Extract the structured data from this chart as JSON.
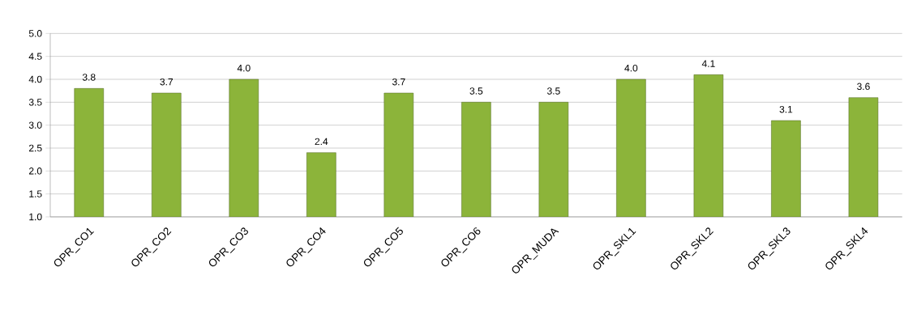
{
  "chart_data": {
    "type": "bar",
    "categories": [
      "OPR_CO1",
      "OPR_CO2",
      "OPR_CO3",
      "OPR_CO4",
      "OPR_CO5",
      "OPR_CO6",
      "OPR_MUDA",
      "OPR_SKL1",
      "OPR_SKL2",
      "OPR_SKL3",
      "OPR_SKL4"
    ],
    "values": [
      3.8,
      3.7,
      4.0,
      2.4,
      3.7,
      3.5,
      3.5,
      4.0,
      4.1,
      3.1,
      3.6
    ],
    "value_labels": [
      "3.8",
      "3.7",
      "4.0",
      "2.4",
      "3.7",
      "3.5",
      "3.5",
      "4.0",
      "4.1",
      "3.1",
      "3.6"
    ],
    "color": "#8cb43a",
    "ylim": [
      1,
      5
    ],
    "yticks": [
      {
        "value": 1,
        "label": "1.0"
      },
      {
        "value": 1.5,
        "label": "1.5"
      },
      {
        "value": 2,
        "label": "2.0"
      },
      {
        "value": 2.5,
        "label": "2.5"
      },
      {
        "value": 3,
        "label": "3.0"
      },
      {
        "value": 3.5,
        "label": "3.5"
      },
      {
        "value": 4,
        "label": "4.0"
      },
      {
        "value": 4.5,
        "label": "4.5"
      },
      {
        "value": 5,
        "label": "5.0"
      }
    ],
    "grid": "y"
  }
}
